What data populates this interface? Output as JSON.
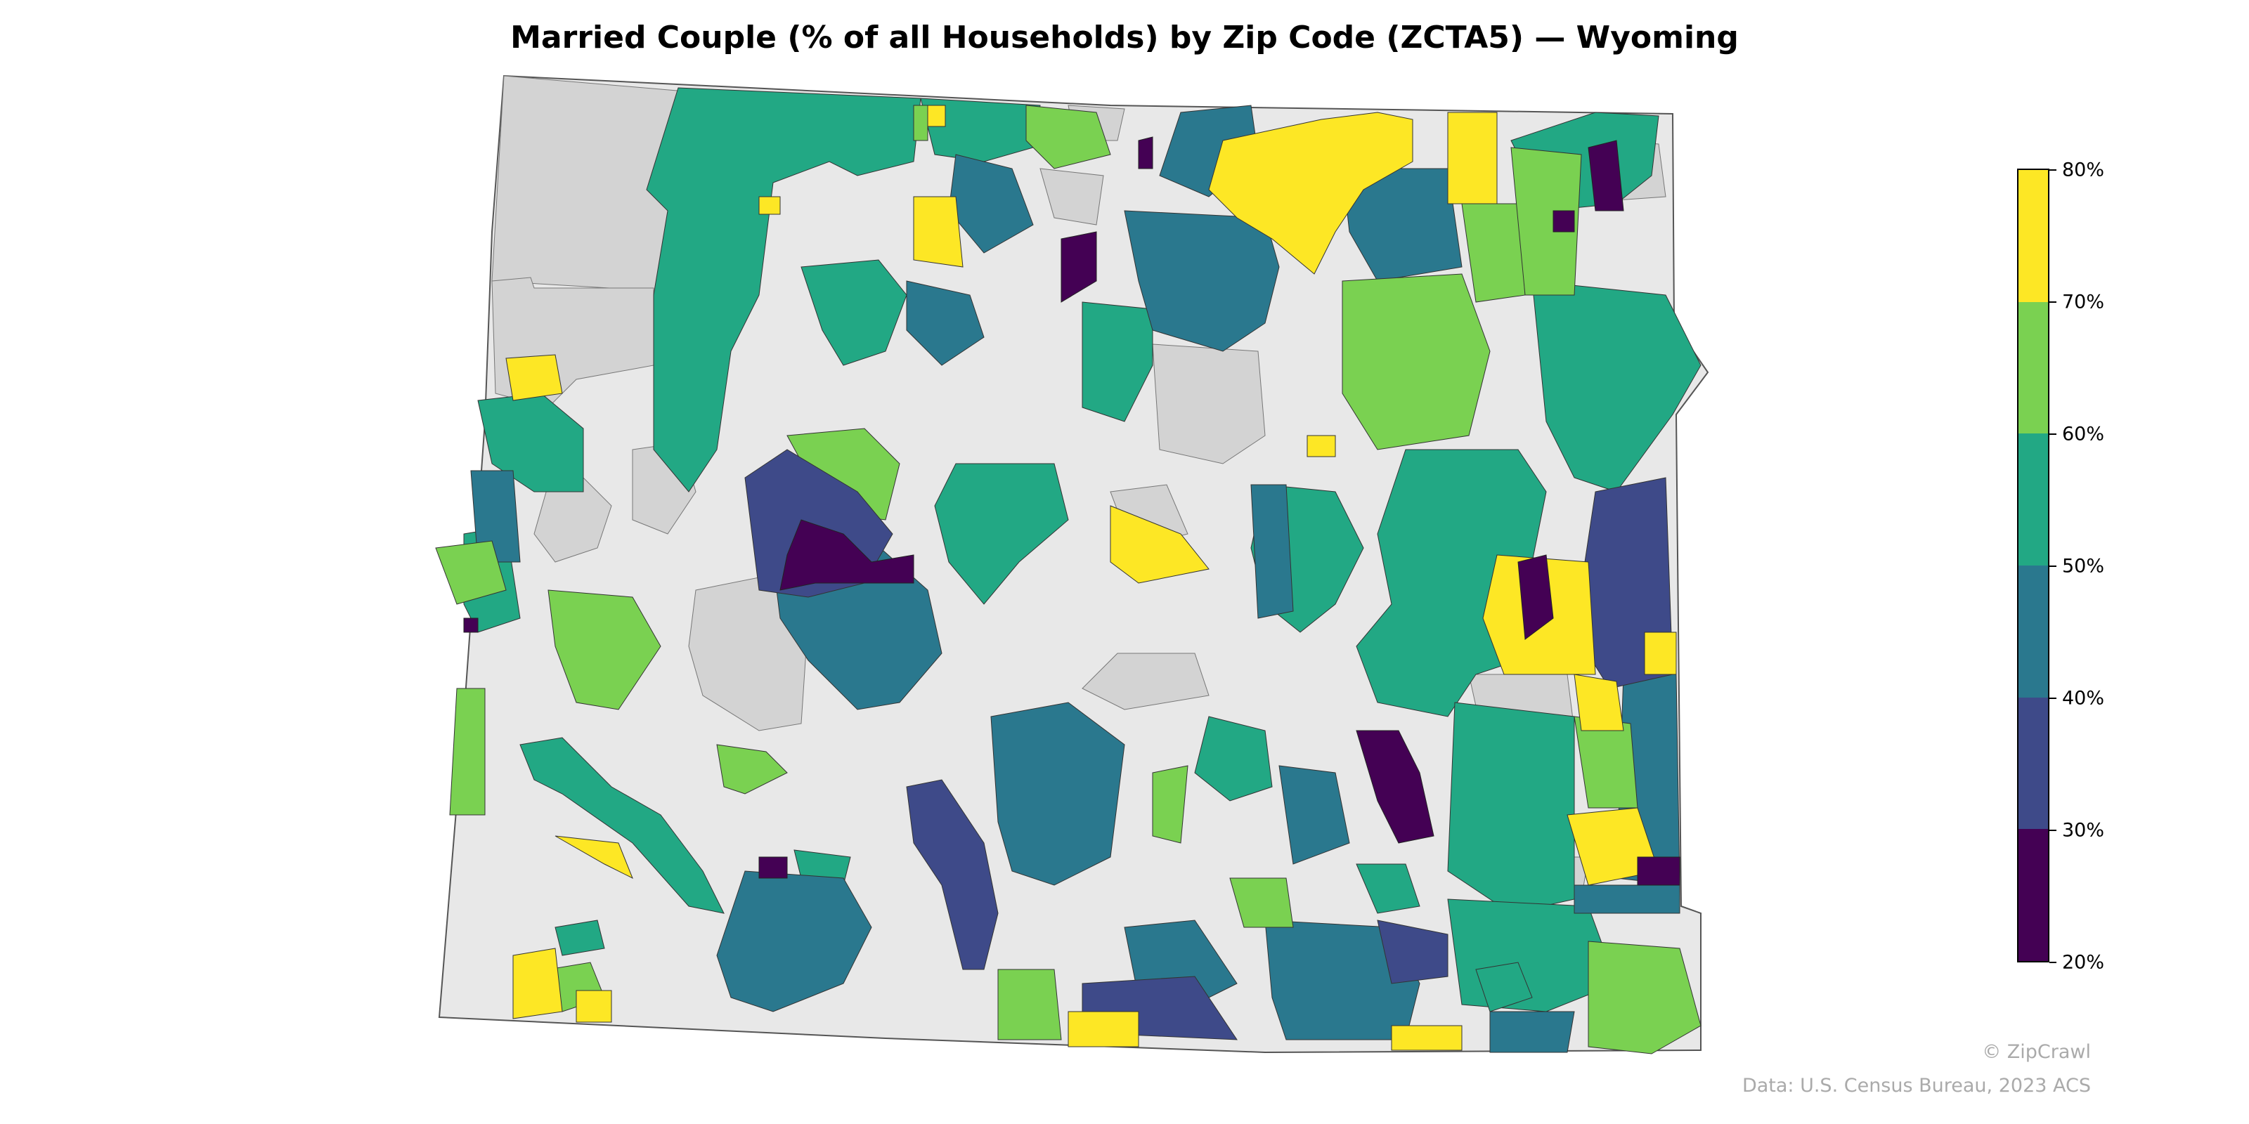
{
  "title": "Married Couple (% of all Households) by Zip Code (ZCTA5) — Wyoming",
  "legend": {
    "min": 20,
    "max": 80,
    "ticks": [
      "20%",
      "30%",
      "40%",
      "50%",
      "60%",
      "70%",
      "80%"
    ],
    "bins": [
      {
        "range": "20-30%",
        "color": "#440154"
      },
      {
        "range": "30-40%",
        "color": "#3e4a89"
      },
      {
        "range": "40-50%",
        "color": "#2a788e"
      },
      {
        "range": "50-60%",
        "color": "#22a884"
      },
      {
        "range": "60-70%",
        "color": "#7ad151"
      },
      {
        "range": "70-80%",
        "color": "#fde725"
      }
    ],
    "no_data_color": "#e8e8e8",
    "other_color": "#d3d3d3"
  },
  "credits": {
    "brand": "© ZipCrawl",
    "source": "Data: U.S. Census Bureau, 2023 ACS"
  }
}
